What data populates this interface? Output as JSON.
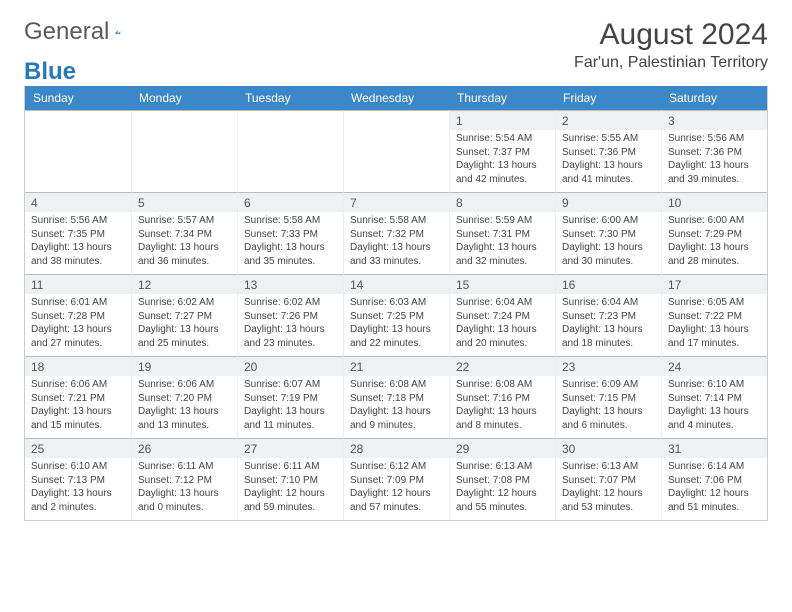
{
  "brand": {
    "part1": "General",
    "part2": "Blue"
  },
  "title": "August 2024",
  "location": "Far'un, Palestinian Territory",
  "colors": {
    "header_bg": "#3b87c8",
    "daynum_bg": "#eef0f1",
    "page_bg": "#ffffff",
    "text": "#444444",
    "border": "#bbbbbb"
  },
  "dow": [
    "Sunday",
    "Monday",
    "Tuesday",
    "Wednesday",
    "Thursday",
    "Friday",
    "Saturday"
  ],
  "weeks": [
    [
      null,
      null,
      null,
      null,
      {
        "d": "1",
        "sr": "5:54 AM",
        "ss": "7:37 PM",
        "dl": "13 hours and 42 minutes."
      },
      {
        "d": "2",
        "sr": "5:55 AM",
        "ss": "7:36 PM",
        "dl": "13 hours and 41 minutes."
      },
      {
        "d": "3",
        "sr": "5:56 AM",
        "ss": "7:36 PM",
        "dl": "13 hours and 39 minutes."
      }
    ],
    [
      {
        "d": "4",
        "sr": "5:56 AM",
        "ss": "7:35 PM",
        "dl": "13 hours and 38 minutes."
      },
      {
        "d": "5",
        "sr": "5:57 AM",
        "ss": "7:34 PM",
        "dl": "13 hours and 36 minutes."
      },
      {
        "d": "6",
        "sr": "5:58 AM",
        "ss": "7:33 PM",
        "dl": "13 hours and 35 minutes."
      },
      {
        "d": "7",
        "sr": "5:58 AM",
        "ss": "7:32 PM",
        "dl": "13 hours and 33 minutes."
      },
      {
        "d": "8",
        "sr": "5:59 AM",
        "ss": "7:31 PM",
        "dl": "13 hours and 32 minutes."
      },
      {
        "d": "9",
        "sr": "6:00 AM",
        "ss": "7:30 PM",
        "dl": "13 hours and 30 minutes."
      },
      {
        "d": "10",
        "sr": "6:00 AM",
        "ss": "7:29 PM",
        "dl": "13 hours and 28 minutes."
      }
    ],
    [
      {
        "d": "11",
        "sr": "6:01 AM",
        "ss": "7:28 PM",
        "dl": "13 hours and 27 minutes."
      },
      {
        "d": "12",
        "sr": "6:02 AM",
        "ss": "7:27 PM",
        "dl": "13 hours and 25 minutes."
      },
      {
        "d": "13",
        "sr": "6:02 AM",
        "ss": "7:26 PM",
        "dl": "13 hours and 23 minutes."
      },
      {
        "d": "14",
        "sr": "6:03 AM",
        "ss": "7:25 PM",
        "dl": "13 hours and 22 minutes."
      },
      {
        "d": "15",
        "sr": "6:04 AM",
        "ss": "7:24 PM",
        "dl": "13 hours and 20 minutes."
      },
      {
        "d": "16",
        "sr": "6:04 AM",
        "ss": "7:23 PM",
        "dl": "13 hours and 18 minutes."
      },
      {
        "d": "17",
        "sr": "6:05 AM",
        "ss": "7:22 PM",
        "dl": "13 hours and 17 minutes."
      }
    ],
    [
      {
        "d": "18",
        "sr": "6:06 AM",
        "ss": "7:21 PM",
        "dl": "13 hours and 15 minutes."
      },
      {
        "d": "19",
        "sr": "6:06 AM",
        "ss": "7:20 PM",
        "dl": "13 hours and 13 minutes."
      },
      {
        "d": "20",
        "sr": "6:07 AM",
        "ss": "7:19 PM",
        "dl": "13 hours and 11 minutes."
      },
      {
        "d": "21",
        "sr": "6:08 AM",
        "ss": "7:18 PM",
        "dl": "13 hours and 9 minutes."
      },
      {
        "d": "22",
        "sr": "6:08 AM",
        "ss": "7:16 PM",
        "dl": "13 hours and 8 minutes."
      },
      {
        "d": "23",
        "sr": "6:09 AM",
        "ss": "7:15 PM",
        "dl": "13 hours and 6 minutes."
      },
      {
        "d": "24",
        "sr": "6:10 AM",
        "ss": "7:14 PM",
        "dl": "13 hours and 4 minutes."
      }
    ],
    [
      {
        "d": "25",
        "sr": "6:10 AM",
        "ss": "7:13 PM",
        "dl": "13 hours and 2 minutes."
      },
      {
        "d": "26",
        "sr": "6:11 AM",
        "ss": "7:12 PM",
        "dl": "13 hours and 0 minutes."
      },
      {
        "d": "27",
        "sr": "6:11 AM",
        "ss": "7:10 PM",
        "dl": "12 hours and 59 minutes."
      },
      {
        "d": "28",
        "sr": "6:12 AM",
        "ss": "7:09 PM",
        "dl": "12 hours and 57 minutes."
      },
      {
        "d": "29",
        "sr": "6:13 AM",
        "ss": "7:08 PM",
        "dl": "12 hours and 55 minutes."
      },
      {
        "d": "30",
        "sr": "6:13 AM",
        "ss": "7:07 PM",
        "dl": "12 hours and 53 minutes."
      },
      {
        "d": "31",
        "sr": "6:14 AM",
        "ss": "7:06 PM",
        "dl": "12 hours and 51 minutes."
      }
    ]
  ],
  "labels": {
    "sunrise": "Sunrise:",
    "sunset": "Sunset:",
    "daylight": "Daylight:"
  }
}
